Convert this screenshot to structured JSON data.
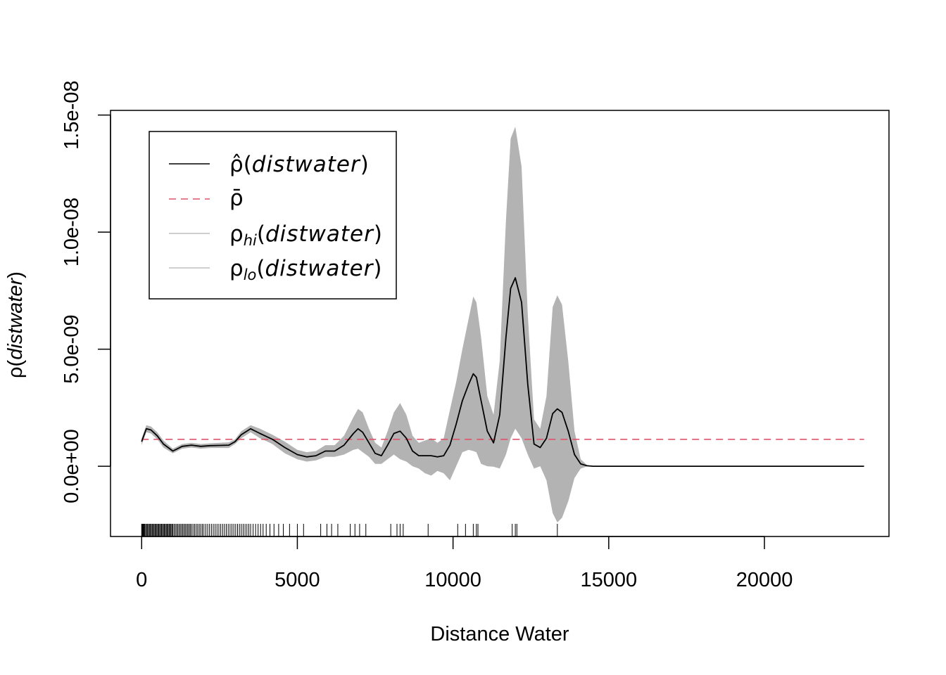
{
  "chart_data": {
    "type": "line",
    "xlabel": "Distance Water",
    "ylabel": {
      "symbol": "ρ",
      "open": "(",
      "var": "distwater",
      "close": ")"
    },
    "xlim": [
      -1000,
      24000
    ],
    "ylim": [
      -3e-09,
      1.52e-08
    ],
    "x_ticks": [
      0,
      5000,
      10000,
      15000,
      20000
    ],
    "x_tick_labels": [
      "0",
      "5000",
      "10000",
      "15000",
      "20000"
    ],
    "y_ticks": [
      0,
      5e-09,
      1e-08,
      1.5e-08
    ],
    "y_tick_labels": [
      "0.0e+00",
      "5.0e-09",
      "1.0e-08",
      "1.5e-08"
    ],
    "grid": false,
    "legend": {
      "position": "top-left",
      "entries": [
        {
          "symbol": "ρ̂",
          "sub": "",
          "open": "(",
          "var": "distwater",
          "close": ")",
          "color": "#000000",
          "dash": "solid"
        },
        {
          "symbol": "ρ̄",
          "sub": "",
          "open": "",
          "var": "",
          "close": "",
          "color": "#df536b",
          "dash": "dashed"
        },
        {
          "symbol": "ρ",
          "sub": "hi",
          "open": "(",
          "var": "distwater",
          "close": ")",
          "color": "#bebebe",
          "dash": "solid"
        },
        {
          "symbol": "ρ",
          "sub": "lo",
          "open": "(",
          "var": "distwater",
          "close": ")",
          "color": "#bebebe",
          "dash": "solid"
        }
      ]
    },
    "colors": {
      "estimate": "#000000",
      "mean": "#df536b",
      "band": "#b3b3b3"
    },
    "mean_value": 1.15e-09,
    "series": [
      {
        "x": [
          0,
          150,
          300,
          500,
          700,
          1000,
          1300,
          1600,
          1900,
          2200,
          2500,
          2800,
          3000,
          3200,
          3500,
          3800,
          4200,
          4600,
          5000,
          5300,
          5600,
          5900,
          6200,
          6500,
          6800,
          6950,
          7100,
          7300,
          7500,
          7700,
          7900,
          8100,
          8300,
          8500,
          8700,
          8900,
          9100,
          9300,
          9500,
          9700,
          9900,
          10100,
          10300,
          10500,
          10650,
          10750,
          10900,
          11100,
          11300,
          11500,
          11700,
          11850,
          12000,
          12200,
          12400,
          12600,
          12800,
          13000,
          13200,
          13350,
          13500,
          13700,
          13900,
          14100,
          14300,
          14500,
          15000,
          16000,
          18000,
          20000,
          22000,
          23200
        ],
        "values": [
          1.05e-09,
          1.6e-09,
          1.55e-09,
          1.3e-09,
          9.5e-10,
          6.5e-10,
          8.5e-10,
          9e-10,
          8.5e-10,
          8.8e-10,
          8.9e-10,
          9e-10,
          1.05e-09,
          1.35e-09,
          1.6e-09,
          1.4e-09,
          1.15e-09,
          8e-10,
          5e-10,
          4e-10,
          4.5e-10,
          6.5e-10,
          6.5e-10,
          9e-10,
          1.4e-09,
          1.6e-09,
          1.45e-09,
          1e-09,
          5.5e-10,
          4.5e-10,
          9e-10,
          1.4e-09,
          1.5e-09,
          1.2e-09,
          6.5e-10,
          4.5e-10,
          4.5e-10,
          4.5e-10,
          4e-10,
          4.5e-10,
          9e-10,
          1.8e-09,
          2.8e-09,
          3.5e-09,
          3.95e-09,
          3.8e-09,
          2.8e-09,
          1.5e-09,
          1e-09,
          2.2e-09,
          5.5e-09,
          7.6e-09,
          8.05e-09,
          7e-09,
          3.5e-09,
          9.5e-10,
          8e-10,
          1.2e-09,
          2.25e-09,
          2.45e-09,
          2.3e-09,
          1.5e-09,
          5e-10,
          1e-10,
          2e-11,
          0,
          0,
          0,
          0,
          0,
          0,
          0
        ],
        "hi": [
          1.2e-09,
          1.75e-09,
          1.7e-09,
          1.45e-09,
          1.1e-09,
          7.5e-10,
          9.5e-10,
          1e-09,
          9.5e-10,
          9.8e-10,
          1e-09,
          1.02e-09,
          1.15e-09,
          1.5e-09,
          1.75e-09,
          1.6e-09,
          1.35e-09,
          1.05e-09,
          7e-10,
          6e-10,
          6.5e-10,
          9e-10,
          9e-10,
          1.3e-09,
          2.1e-09,
          2.45e-09,
          2.3e-09,
          1.6e-09,
          1e-09,
          8e-10,
          1.5e-09,
          2.3e-09,
          2.7e-09,
          2.2e-09,
          1.3e-09,
          1e-09,
          1.1e-09,
          1.2e-09,
          1e-09,
          1.2e-09,
          2.4e-09,
          3.6e-09,
          5e-09,
          6.3e-09,
          7.25e-09,
          7e-09,
          5.5e-09,
          3e-09,
          2.2e-09,
          4.5e-09,
          1.05e-08,
          1.4e-08,
          1.45e-08,
          1.28e-08,
          6.5e-09,
          2e-09,
          1.6e-09,
          3e-09,
          6.8e-09,
          7.3e-09,
          6.9e-09,
          4.5e-09,
          1.5e-09,
          3e-10,
          5e-11,
          0,
          0,
          0,
          0,
          0,
          0,
          0
        ],
        "lo": [
          9e-10,
          1.45e-09,
          1.4e-09,
          1.15e-09,
          8e-10,
          5.5e-10,
          7.5e-10,
          8e-10,
          7.5e-10,
          7.8e-10,
          7.8e-10,
          7.8e-10,
          9.5e-10,
          1.2e-09,
          1.45e-09,
          1.2e-09,
          9.5e-10,
          5.5e-10,
          3e-10,
          2e-10,
          2.5e-10,
          4e-10,
          4e-10,
          5e-10,
          7e-10,
          7.5e-10,
          6e-10,
          4e-10,
          1e-10,
          1e-10,
          3e-10,
          5e-10,
          3e-10,
          2e-10,
          0,
          -1e-10,
          -3e-10,
          -4e-10,
          -2e-10,
          -3e-10,
          -6e-10,
          0,
          6e-10,
          7e-10,
          6.5e-10,
          6e-10,
          1e-10,
          0,
          -2e-11,
          -1e-10,
          5e-10,
          1.2e-09,
          1.6e-09,
          1.2e-09,
          5e-10,
          -1e-10,
          0,
          -6e-10,
          -2e-09,
          -2.4e-09,
          -2.2e-09,
          -1.5e-09,
          -5e-10,
          -1e-10,
          -1e-11,
          0,
          0,
          0,
          0,
          0,
          0,
          0
        ]
      }
    ],
    "rug": [
      0,
      20,
      40,
      60,
      80,
      100,
      130,
      160,
      190,
      220,
      250,
      280,
      310,
      340,
      370,
      400,
      430,
      460,
      490,
      520,
      550,
      580,
      610,
      640,
      670,
      700,
      730,
      760,
      790,
      820,
      850,
      880,
      910,
      940,
      970,
      1000,
      1040,
      1080,
      1120,
      1160,
      1200,
      1240,
      1280,
      1320,
      1360,
      1400,
      1440,
      1480,
      1520,
      1560,
      1600,
      1650,
      1700,
      1750,
      1800,
      1850,
      1900,
      1950,
      2000,
      2060,
      2120,
      2180,
      2240,
      2300,
      2360,
      2420,
      2480,
      2540,
      2600,
      2660,
      2720,
      2780,
      2840,
      2900,
      2960,
      3020,
      3080,
      3140,
      3200,
      3260,
      3320,
      3380,
      3440,
      3500,
      3580,
      3660,
      3740,
      3820,
      3900,
      4000,
      4120,
      4250,
      4400,
      4550,
      4750,
      5000,
      5200,
      5750,
      5950,
      6100,
      6300,
      6700,
      6850,
      7000,
      7200,
      8000,
      8200,
      8300,
      8400,
      9200,
      10150,
      10400,
      10650,
      10750,
      10800,
      11900,
      12000,
      12050,
      13350
    ]
  }
}
